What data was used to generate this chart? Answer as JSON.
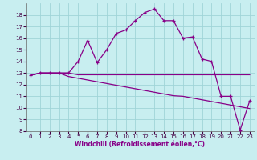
{
  "xlabel": "Windchill (Refroidissement éolien,°C)",
  "background_color": "#c8eef0",
  "grid_color": "#a0d4d8",
  "line_color": "#880088",
  "xlim": [
    -0.5,
    23.5
  ],
  "ylim": [
    8,
    19
  ],
  "yticks": [
    8,
    9,
    10,
    11,
    12,
    13,
    14,
    15,
    16,
    17,
    18
  ],
  "xticks": [
    0,
    1,
    2,
    3,
    4,
    5,
    6,
    7,
    8,
    9,
    10,
    11,
    12,
    13,
    14,
    15,
    16,
    17,
    18,
    19,
    20,
    21,
    22,
    23
  ],
  "series_main_x": [
    0,
    1,
    2,
    3,
    4,
    5,
    6,
    7,
    8,
    9,
    10,
    11,
    12,
    13,
    14,
    15,
    16,
    17,
    18,
    19,
    20,
    21,
    22,
    23
  ],
  "series_main_y": [
    12.8,
    13.0,
    13.0,
    13.0,
    13.0,
    14.0,
    15.8,
    13.9,
    15.0,
    16.4,
    16.7,
    17.5,
    18.2,
    18.5,
    17.5,
    17.5,
    16.0,
    16.1,
    14.2,
    14.0,
    11.0,
    11.0,
    8.1,
    10.6
  ],
  "series_flat_x": [
    0,
    1,
    2,
    3,
    4,
    5,
    6,
    7,
    8,
    9,
    10,
    11,
    12,
    13,
    14,
    15,
    16,
    17,
    18,
    19,
    20,
    21,
    22,
    23
  ],
  "series_flat_y": [
    12.8,
    13.0,
    13.0,
    13.0,
    13.0,
    12.85,
    12.85,
    12.85,
    12.85,
    12.85,
    12.85,
    12.85,
    12.85,
    12.85,
    12.85,
    12.85,
    12.85,
    12.85,
    12.85,
    12.85,
    12.85,
    12.85,
    12.85,
    12.85
  ],
  "series_decay_x": [
    0,
    1,
    2,
    3,
    4,
    5,
    6,
    7,
    8,
    9,
    10,
    11,
    12,
    13,
    14,
    15,
    16,
    17,
    18,
    19,
    20,
    21,
    22,
    23
  ],
  "series_decay_y": [
    12.8,
    13.0,
    13.0,
    13.0,
    12.7,
    12.55,
    12.4,
    12.25,
    12.1,
    11.95,
    11.8,
    11.65,
    11.5,
    11.35,
    11.2,
    11.05,
    11.0,
    10.85,
    10.7,
    10.55,
    10.4,
    10.25,
    10.1,
    9.95
  ],
  "xlabel_fontsize": 5.5,
  "tick_fontsize": 5
}
